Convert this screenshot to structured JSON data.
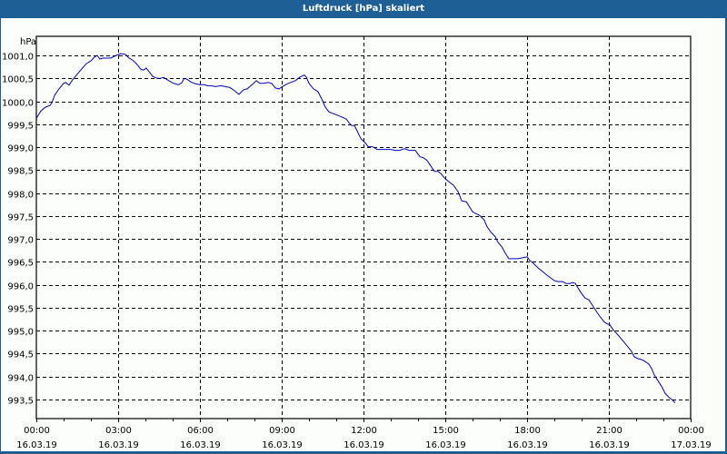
{
  "window": {
    "title": "Luftdruck [hPa] skaliert"
  },
  "colors": {
    "titlebar": "#1e6096",
    "background": "#fcfefc",
    "line": "#0000c0",
    "grid": "#000000"
  },
  "chart_data": {
    "type": "line",
    "title": "Luftdruck [hPa] skaliert",
    "ylabel": "hPa",
    "xlabel": "",
    "ylim": [
      993.1,
      1001.4
    ],
    "xlim_hours": [
      0,
      24
    ],
    "grid": true,
    "grid_style": "dashed",
    "legend": null,
    "y_ticks": [
      "1001,0",
      "1000,5",
      "1000,0",
      "999,5",
      "999,0",
      "998,5",
      "998,0",
      "997,5",
      "997,0",
      "996,5",
      "996,0",
      "995,5",
      "995,0",
      "994,5",
      "994,0",
      "993,5"
    ],
    "y_tick_values": [
      1001.0,
      1000.5,
      1000.0,
      999.5,
      999.0,
      998.5,
      998.0,
      997.5,
      997.0,
      996.5,
      996.0,
      995.5,
      995.0,
      994.5,
      994.0,
      993.5
    ],
    "x_ticks": [
      {
        "time": "00:00",
        "date": "16.03.19"
      },
      {
        "time": "03:00",
        "date": "16.03.19"
      },
      {
        "time": "06:00",
        "date": "16.03.19"
      },
      {
        "time": "09:00",
        "date": "16.03.19"
      },
      {
        "time": "12:00",
        "date": "16.03.19"
      },
      {
        "time": "15:00",
        "date": "16.03.19"
      },
      {
        "time": "18:00",
        "date": "16.03.19"
      },
      {
        "time": "21:00",
        "date": "16.03.19"
      },
      {
        "time": "00:00",
        "date": "17.03.19"
      }
    ],
    "series": [
      {
        "name": "Luftdruck",
        "x_hours": [
          0.0,
          0.17,
          0.33,
          0.5,
          0.57,
          0.67,
          0.83,
          1.0,
          1.07,
          1.2,
          1.33,
          1.5,
          1.67,
          1.83,
          2.0,
          2.13,
          2.23,
          2.33,
          2.43,
          2.6,
          2.73,
          2.93,
          3.1,
          3.27,
          3.4,
          3.53,
          3.67,
          3.83,
          3.93,
          4.03,
          4.17,
          4.27,
          4.43,
          4.53,
          4.67,
          4.83,
          5.0,
          5.2,
          5.33,
          5.43,
          5.53,
          5.67,
          5.83,
          6.0,
          6.17,
          6.27,
          6.4,
          6.57,
          6.77,
          6.93,
          7.1,
          7.2,
          7.33,
          7.43,
          7.5,
          7.6,
          7.73,
          7.93,
          8.07,
          8.2,
          8.33,
          8.5,
          8.63,
          8.77,
          8.9,
          9.0,
          9.17,
          9.33,
          9.5,
          9.67,
          9.83,
          9.9,
          10.0,
          10.17,
          10.33,
          10.5,
          10.6,
          10.73,
          10.9,
          11.07,
          11.23,
          11.37,
          11.47,
          11.57,
          11.67,
          11.77,
          11.9,
          12.07,
          12.17,
          12.33,
          12.5,
          12.67,
          12.83,
          13.0,
          13.17,
          13.33,
          13.5,
          13.67,
          13.77,
          13.9,
          14.07,
          14.2,
          14.33,
          14.47,
          14.6,
          14.73,
          14.83,
          15.0,
          15.17,
          15.3,
          15.47,
          15.6,
          15.77,
          15.9,
          16.0,
          16.13,
          16.27,
          16.43,
          16.53,
          16.67,
          16.83,
          16.93,
          17.07,
          17.2,
          17.33,
          17.5,
          17.67,
          17.83,
          18.0,
          18.1,
          18.23,
          18.4,
          18.57,
          18.73,
          18.87,
          19.0,
          19.13,
          19.3,
          19.43,
          19.57,
          19.67,
          19.77,
          19.87,
          20.0,
          20.13,
          20.27,
          20.4,
          20.53,
          20.67,
          20.83,
          20.93,
          21.03,
          21.17,
          21.33,
          21.5,
          21.67,
          21.83,
          21.93,
          22.07,
          22.2,
          22.33,
          22.47,
          22.57,
          22.67,
          22.8,
          22.93,
          23.07,
          23.2,
          23.33,
          23.43
        ],
        "values": [
          999.63,
          999.79,
          999.87,
          999.91,
          999.97,
          1000.13,
          1000.27,
          1000.39,
          1000.41,
          1000.35,
          1000.47,
          1000.59,
          1000.71,
          1000.82,
          1000.88,
          1000.96,
          1001.0,
          1000.92,
          1000.94,
          1000.94,
          1000.94,
          1001.0,
          1001.04,
          1001.02,
          1000.94,
          1000.9,
          1000.82,
          1000.7,
          1000.68,
          1000.72,
          1000.62,
          1000.54,
          1000.5,
          1000.5,
          1000.52,
          1000.46,
          1000.4,
          1000.36,
          1000.4,
          1000.5,
          1000.48,
          1000.42,
          1000.38,
          1000.36,
          1000.36,
          1000.34,
          1000.34,
          1000.32,
          1000.34,
          1000.32,
          1000.3,
          1000.26,
          1000.2,
          1000.15,
          1000.19,
          1000.25,
          1000.27,
          1000.37,
          1000.45,
          1000.39,
          1000.39,
          1000.41,
          1000.39,
          1000.29,
          1000.27,
          1000.31,
          1000.37,
          1000.41,
          1000.45,
          1000.53,
          1000.57,
          1000.53,
          1000.39,
          1000.27,
          1000.21,
          1000.01,
          999.87,
          999.77,
          999.73,
          999.69,
          999.65,
          999.61,
          999.53,
          999.47,
          999.47,
          999.35,
          999.19,
          999.09,
          999.01,
          999.01,
          998.95,
          998.95,
          998.95,
          998.95,
          998.93,
          998.93,
          998.97,
          998.93,
          998.93,
          998.93,
          998.79,
          998.77,
          998.71,
          998.59,
          998.47,
          998.47,
          998.43,
          998.31,
          998.23,
          998.17,
          998.03,
          997.83,
          997.81,
          997.69,
          997.59,
          997.55,
          997.51,
          997.41,
          997.27,
          997.15,
          997.05,
          996.93,
          996.83,
          996.69,
          996.57,
          996.57,
          996.57,
          996.59,
          996.61,
          996.53,
          996.47,
          996.37,
          996.29,
          996.21,
          996.15,
          996.09,
          996.07,
          996.07,
          996.03,
          996.03,
          996.05,
          996.03,
          995.93,
          995.81,
          995.71,
          995.67,
          995.55,
          995.43,
          995.31,
          995.19,
          995.15,
          995.13,
          995.01,
          994.91,
          994.79,
          994.67,
          994.55,
          994.43,
          994.39,
          994.37,
          994.33,
          994.27,
          994.17,
          994.03,
          993.91,
          993.79,
          993.63,
          993.55,
          993.49,
          993.43
        ]
      }
    ]
  }
}
